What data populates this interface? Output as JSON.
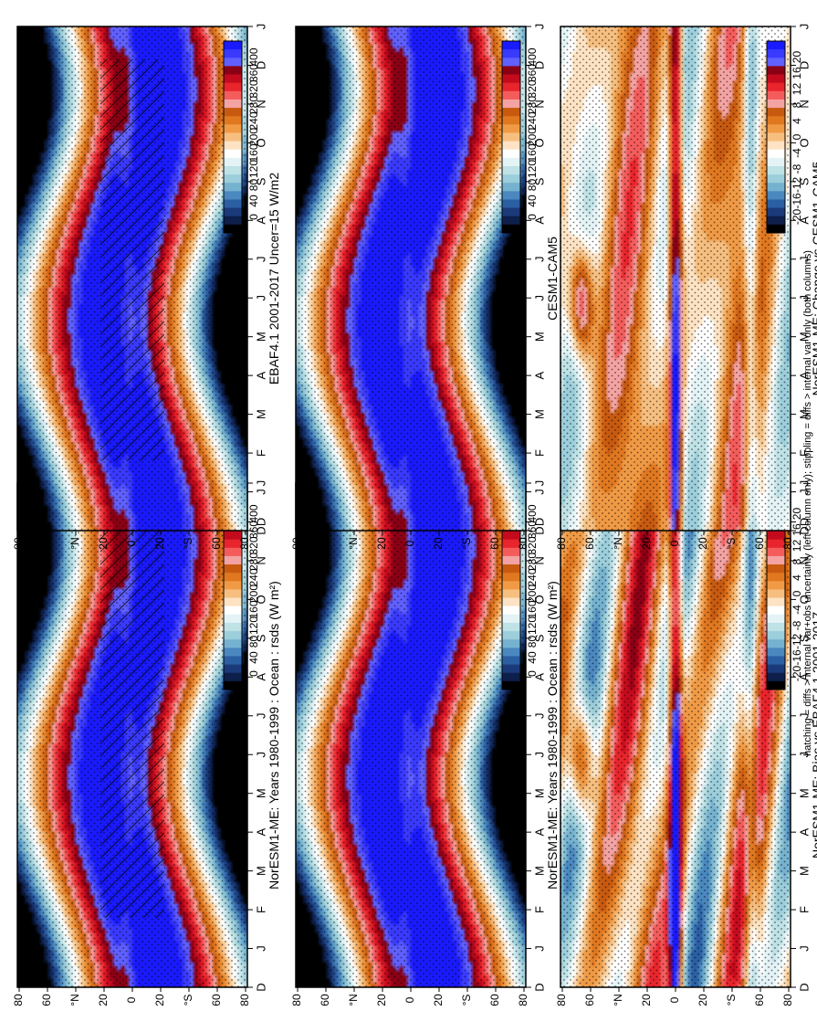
{
  "figure": {
    "footnote": "hatching = diffs > internal var+obs uncertainty (left column only); stippling = diffs > internal var only (both columns)"
  },
  "chart_data": [
    {
      "type": "heatmap",
      "id": "p1",
      "title": "NorESM1-ME: Years 1980-1999 : Ocean : rsds (W m²)",
      "months": [
        "D",
        "J",
        "F",
        "M",
        "A",
        "M",
        "J",
        "J",
        "A",
        "S",
        "O",
        "N",
        "D",
        "J"
      ],
      "lat_ticks": [
        "80",
        "60",
        "°N",
        "20",
        "0",
        "20",
        "°S",
        "60",
        "80"
      ],
      "colorbar_labels": [
        "400",
        "360",
        "320",
        "280",
        "240",
        "200",
        "160",
        "120",
        "80",
        "40",
        "0"
      ],
      "colorbar_colors": [
        "#1a1aff",
        "#3a3aff",
        "#6060ff",
        "#8a0015",
        "#c40b1e",
        "#e8242c",
        "#f45c5c",
        "#f4a3a3",
        "#c85a10",
        "#e07820",
        "#f09a45",
        "#f6bf80",
        "#fde3c3",
        "#ffffff",
        "#e3f3f6",
        "#bfe2e6",
        "#9ccedb",
        "#75b2cf",
        "#4a88bf",
        "#2b5fa3",
        "#1a3a7a",
        "#0d1f4a",
        "#000000"
      ],
      "value_range": [
        0,
        400
      ],
      "hatching": true,
      "stippling": true,
      "diff": false
    },
    {
      "type": "heatmap",
      "id": "p2",
      "title": "NorESM1-ME: Years 1980-1999 : Ocean : rsds (W m²)",
      "months": [
        "D",
        "J",
        "F",
        "M",
        "A",
        "M",
        "J",
        "J",
        "A",
        "S",
        "O",
        "N",
        "D",
        "J"
      ],
      "lat_ticks": [
        "80",
        "60",
        "°N",
        "20",
        "0",
        "20",
        "°S",
        "60",
        "80"
      ],
      "colorbar_labels": [
        "400",
        "360",
        "320",
        "280",
        "240",
        "200",
        "160",
        "120",
        "80",
        "40",
        "0"
      ],
      "colorbar_colors": [
        "#1a1aff",
        "#3a3aff",
        "#6060ff",
        "#8a0015",
        "#c40b1e",
        "#e8242c",
        "#f45c5c",
        "#f4a3a3",
        "#c85a10",
        "#e07820",
        "#f09a45",
        "#f6bf80",
        "#fde3c3",
        "#ffffff",
        "#e3f3f6",
        "#bfe2e6",
        "#9ccedb",
        "#75b2cf",
        "#4a88bf",
        "#2b5fa3",
        "#1a3a7a",
        "#0d1f4a",
        "#000000"
      ],
      "value_range": [
        0,
        400
      ],
      "hatching": false,
      "stippling": true,
      "diff": false
    },
    {
      "type": "heatmap",
      "id": "p3",
      "title": "EBAF4.1 2001-2017 Uncer=15 W/m2",
      "months": [
        "D",
        "J",
        "F",
        "M",
        "A",
        "M",
        "J",
        "J",
        "A",
        "S",
        "O",
        "N",
        "D",
        "J"
      ],
      "lat_ticks": [
        "80",
        "60",
        "°N",
        "20",
        "0",
        "20",
        "°S",
        "60",
        "80"
      ],
      "colorbar_labels": [
        "400",
        "360",
        "320",
        "280",
        "240",
        "200",
        "160",
        "120",
        "80",
        "40",
        "0"
      ],
      "colorbar_colors": [
        "#1a1aff",
        "#3a3aff",
        "#6060ff",
        "#8a0015",
        "#c40b1e",
        "#e8242c",
        "#f45c5c",
        "#f4a3a3",
        "#c85a10",
        "#e07820",
        "#f09a45",
        "#f6bf80",
        "#fde3c3",
        "#ffffff",
        "#e3f3f6",
        "#bfe2e6",
        "#9ccedb",
        "#75b2cf",
        "#4a88bf",
        "#2b5fa3",
        "#1a3a7a",
        "#0d1f4a",
        "#000000"
      ],
      "value_range": [
        0,
        400
      ],
      "hatching": true,
      "stippling": true,
      "diff": false
    },
    {
      "type": "heatmap",
      "id": "p4",
      "title": "CESM1-CAM5",
      "months": [
        "D",
        "J",
        "F",
        "M",
        "A",
        "M",
        "J",
        "J",
        "A",
        "S",
        "O",
        "N",
        "D",
        "J"
      ],
      "lat_ticks": [
        "80",
        "60",
        "°N",
        "20",
        "0",
        "20",
        "°S",
        "60",
        "80"
      ],
      "colorbar_labels": [
        "400",
        "360",
        "320",
        "280",
        "240",
        "200",
        "160",
        "120",
        "80",
        "40",
        "0"
      ],
      "colorbar_colors": [
        "#1a1aff",
        "#3a3aff",
        "#6060ff",
        "#8a0015",
        "#c40b1e",
        "#e8242c",
        "#f45c5c",
        "#f4a3a3",
        "#c85a10",
        "#e07820",
        "#f09a45",
        "#f6bf80",
        "#fde3c3",
        "#ffffff",
        "#e3f3f6",
        "#bfe2e6",
        "#9ccedb",
        "#75b2cf",
        "#4a88bf",
        "#2b5fa3",
        "#1a3a7a",
        "#0d1f4a",
        "#000000"
      ],
      "value_range": [
        0,
        400
      ],
      "hatching": false,
      "stippling": true,
      "diff": false
    },
    {
      "type": "heatmap",
      "id": "p5",
      "title": "NorESM1-ME: Bias vs EBAF4.1 2001-2017",
      "months": [
        "D",
        "J",
        "F",
        "M",
        "A",
        "M",
        "J",
        "J",
        "A",
        "S",
        "O",
        "N",
        "D",
        "J"
      ],
      "lat_ticks": [
        "80",
        "60",
        "°N",
        "20",
        "0",
        "20",
        "°S",
        "60",
        "80"
      ],
      "colorbar_labels": [
        "20",
        "16",
        "12",
        "8",
        "4",
        "0",
        "-4",
        "-8",
        "-12",
        "-16",
        "-20"
      ],
      "colorbar_colors": [
        "#1a1aff",
        "#3a3aff",
        "#6060ff",
        "#8a0015",
        "#c40b1e",
        "#e8242c",
        "#f45c5c",
        "#f4a3a3",
        "#c85a10",
        "#e07820",
        "#f09a45",
        "#f6bf80",
        "#fde3c3",
        "#ffffff",
        "#e3f3f6",
        "#bfe2e6",
        "#9ccedb",
        "#75b2cf",
        "#4a88bf",
        "#2b5fa3",
        "#1a3a7a",
        "#0d1f4a",
        "#000000"
      ],
      "value_range": [
        -20,
        20
      ],
      "hatching": false,
      "stippling": true,
      "diff": true
    },
    {
      "type": "heatmap",
      "id": "p6",
      "title": "NorESM1-ME: Change vs CESM1-CAM5",
      "months": [
        "D",
        "J",
        "F",
        "M",
        "A",
        "M",
        "J",
        "J",
        "A",
        "S",
        "O",
        "N",
        "D",
        "J"
      ],
      "lat_ticks": [
        "80",
        "60",
        "°N",
        "20",
        "0",
        "20",
        "°S",
        "60",
        "80"
      ],
      "colorbar_labels": [
        "20",
        "16",
        "12",
        "8",
        "4",
        "0",
        "-4",
        "-8",
        "-12",
        "-16",
        "-20"
      ],
      "colorbar_colors": [
        "#1a1aff",
        "#3a3aff",
        "#6060ff",
        "#8a0015",
        "#c40b1e",
        "#e8242c",
        "#f45c5c",
        "#f4a3a3",
        "#c85a10",
        "#e07820",
        "#f09a45",
        "#f6bf80",
        "#fde3c3",
        "#ffffff",
        "#e3f3f6",
        "#bfe2e6",
        "#9ccedb",
        "#75b2cf",
        "#4a88bf",
        "#2b5fa3",
        "#1a3a7a",
        "#0d1f4a",
        "#000000"
      ],
      "value_range": [
        -20,
        20
      ],
      "hatching": false,
      "stippling": true,
      "diff": true
    }
  ]
}
